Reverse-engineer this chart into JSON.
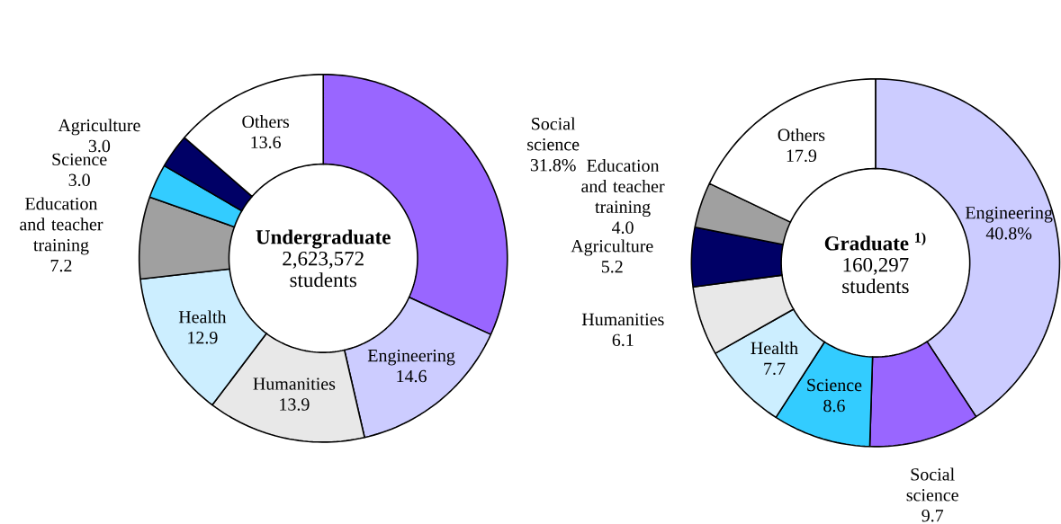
{
  "chart_data": [
    {
      "type": "donut",
      "title": "Undergraduate",
      "annotations": [
        "2,623,572",
        "students"
      ],
      "categories": [
        "Social science",
        "Engineering",
        "Humanities",
        "Health",
        "Education and teacher training",
        "Science",
        "Agriculture",
        "Others"
      ],
      "values": [
        31.8,
        14.6,
        13.9,
        12.9,
        7.2,
        3.0,
        3.0,
        13.6
      ],
      "value_labels": [
        "31.8%",
        "14.6",
        "13.9",
        "12.9",
        "7.2",
        "3.0",
        "3.0",
        "13.6"
      ],
      "colors": [
        "#9966ff",
        "#ccccff",
        "#e8e8e8",
        "#cceeff",
        "#a0a0a0",
        "#33ccff",
        "#000066",
        "#ffffff"
      ]
    },
    {
      "type": "donut",
      "title": "Graduate $^{1)}$",
      "annotations": [
        "160,297",
        "students"
      ],
      "categories": [
        "Engineering",
        "Social science",
        "Science",
        "Health",
        "Humanities",
        "Agriculture",
        "Education and teacher training",
        "Others"
      ],
      "values": [
        40.8,
        9.7,
        8.6,
        7.7,
        6.1,
        5.2,
        4.0,
        17.9
      ],
      "value_labels": [
        "40.8%",
        "9.7",
        "8.6",
        "7.7",
        "6.1",
        "5.2",
        "4.0",
        "17.9"
      ],
      "colors": [
        "#ccccff",
        "#9966ff",
        "#33ccff",
        "#cceeff",
        "#e8e8e8",
        "#000066",
        "#a0a0a0",
        "#ffffff"
      ]
    }
  ]
}
